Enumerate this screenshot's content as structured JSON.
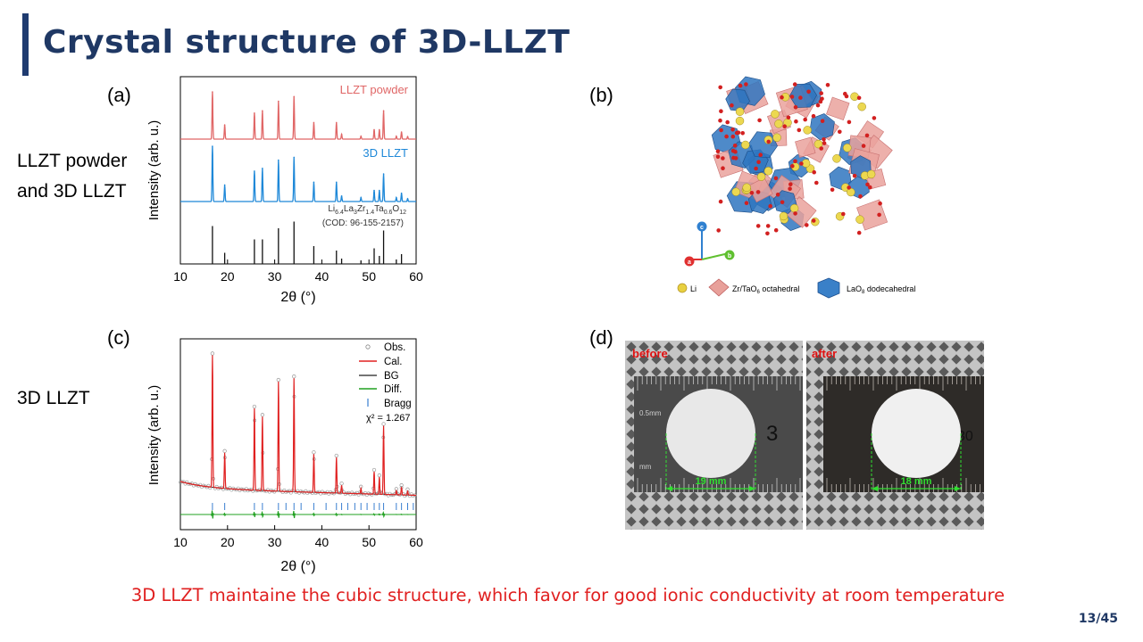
{
  "slide": {
    "title": "Crystal structure of 3D-LLZT",
    "footer": "3D LLZT maintaine the cubic structure, which favor for good ionic conductivity at room temperature",
    "page": "13/45",
    "side_labels": {
      "a_line1": "LLZT powder",
      "a_line2": "and 3D LLZT",
      "c": "3D LLZT"
    },
    "colors": {
      "title": "#1f3864",
      "footer": "#e02020",
      "powder": "#e06666",
      "llzt3d": "#1e88d8"
    }
  },
  "panels": {
    "a": {
      "label": "(a)"
    },
    "b": {
      "label": "(b)"
    },
    "c": {
      "label": "(c)"
    },
    "d": {
      "label": "(d)"
    }
  },
  "panel_b": {
    "axes": [
      "c",
      "a",
      "b"
    ],
    "legend": {
      "li": "Li",
      "octa": "Zr/TaO",
      "octa_sub": "6",
      "octa_tail": " octahedral",
      "dodeca": "LaO",
      "dodeca_sub": "8",
      "dodeca_tail": " dodecahedral"
    }
  },
  "panel_d": {
    "before": {
      "label": "before",
      "diameter": "19 mm",
      "ruler_marks": [
        "0.5mm",
        "3",
        "mm"
      ]
    },
    "after": {
      "label": "after",
      "diameter": "18 mm",
      "ruler_marks": [
        "30"
      ]
    }
  },
  "chart_data": [
    {
      "type": "line",
      "panel": "a",
      "xlabel": "2θ (°)",
      "ylabel": "Intensity (arb. u.)",
      "xlim": [
        10,
        60
      ],
      "xticks": [
        "10",
        "20",
        "30",
        "40",
        "50",
        "60"
      ],
      "series": [
        {
          "name": "LLZT powder",
          "color": "#e06666",
          "peaks": [
            [
              16.8,
              1.0
            ],
            [
              19.4,
              0.3
            ],
            [
              25.7,
              0.55
            ],
            [
              27.4,
              0.6
            ],
            [
              30.8,
              0.8
            ],
            [
              34.1,
              0.9
            ],
            [
              38.3,
              0.35
            ],
            [
              43.1,
              0.35
            ],
            [
              44.2,
              0.1
            ],
            [
              48.3,
              0.06
            ],
            [
              51.1,
              0.2
            ],
            [
              52.2,
              0.2
            ],
            [
              53.1,
              0.6
            ],
            [
              55.8,
              0.06
            ],
            [
              56.9,
              0.15
            ],
            [
              58.2,
              0.05
            ]
          ]
        },
        {
          "name": "3D LLZT",
          "color": "#1e88d8",
          "peaks": [
            [
              16.8,
              1.0
            ],
            [
              19.4,
              0.3
            ],
            [
              25.7,
              0.55
            ],
            [
              27.4,
              0.6
            ],
            [
              30.8,
              0.75
            ],
            [
              34.1,
              0.8
            ],
            [
              38.3,
              0.35
            ],
            [
              43.1,
              0.35
            ],
            [
              44.2,
              0.1
            ],
            [
              48.3,
              0.07
            ],
            [
              51.1,
              0.2
            ],
            [
              52.2,
              0.2
            ],
            [
              53.1,
              0.5
            ],
            [
              55.8,
              0.07
            ],
            [
              56.9,
              0.15
            ],
            [
              58.2,
              0.05
            ]
          ]
        }
      ],
      "reference": {
        "name": "Li6.4La3Zr1.4Ta0.6O12",
        "formula": {
          "p1": "Li",
          "s1": "6.4",
          "p2": "La",
          "s2": "3",
          "p3": "Zr",
          "s3": "1.4",
          "p4": "Ta",
          "s4": "0.6",
          "p5": "O",
          "s5": "12"
        },
        "cod": "(COD: 96-155-2157)",
        "sticks": [
          [
            16.8,
            0.85
          ],
          [
            19.4,
            0.25
          ],
          [
            25.7,
            0.55
          ],
          [
            27.4,
            0.55
          ],
          [
            30.8,
            0.8
          ],
          [
            34.1,
            0.95
          ],
          [
            38.3,
            0.4
          ],
          [
            43.1,
            0.3
          ],
          [
            44.2,
            0.12
          ],
          [
            48.3,
            0.08
          ],
          [
            51.1,
            0.35
          ],
          [
            52.2,
            0.18
          ],
          [
            53.1,
            0.75
          ],
          [
            55.8,
            0.1
          ],
          [
            56.9,
            0.22
          ]
        ]
      }
    },
    {
      "type": "line",
      "panel": "c",
      "xlabel": "2θ (°)",
      "ylabel": "Intensity (arb. u.)",
      "xlim": [
        10,
        60
      ],
      "xticks": [
        "10",
        "20",
        "30",
        "40",
        "50",
        "60"
      ],
      "legend": [
        "Obs.",
        "Cal.",
        "BG",
        "Diff.",
        "Bragg"
      ],
      "chi2": "χ² = 1.267",
      "series": [
        {
          "name": "Cal.",
          "color": "#e02020",
          "peaks": [
            [
              16.8,
              1.0
            ],
            [
              19.4,
              0.27
            ],
            [
              25.7,
              0.62
            ],
            [
              27.4,
              0.56
            ],
            [
              30.8,
              0.83
            ],
            [
              34.1,
              0.86
            ],
            [
              38.3,
              0.29
            ],
            [
              43.1,
              0.27
            ],
            [
              44.2,
              0.06
            ],
            [
              48.3,
              0.04
            ],
            [
              51.1,
              0.17
            ],
            [
              52.2,
              0.13
            ],
            [
              53.1,
              0.52
            ],
            [
              55.8,
              0.03
            ],
            [
              56.9,
              0.06
            ],
            [
              58.2,
              0.03
            ]
          ]
        }
      ],
      "bragg_positions": [
        16.8,
        19.4,
        25.7,
        27.4,
        30.8,
        32.4,
        34.1,
        35.6,
        38.3,
        40.9,
        43.1,
        44.2,
        45.5,
        47.0,
        48.3,
        49.6,
        51.1,
        52.2,
        53.1,
        55.8,
        56.9,
        58.2,
        59.4
      ]
    }
  ]
}
